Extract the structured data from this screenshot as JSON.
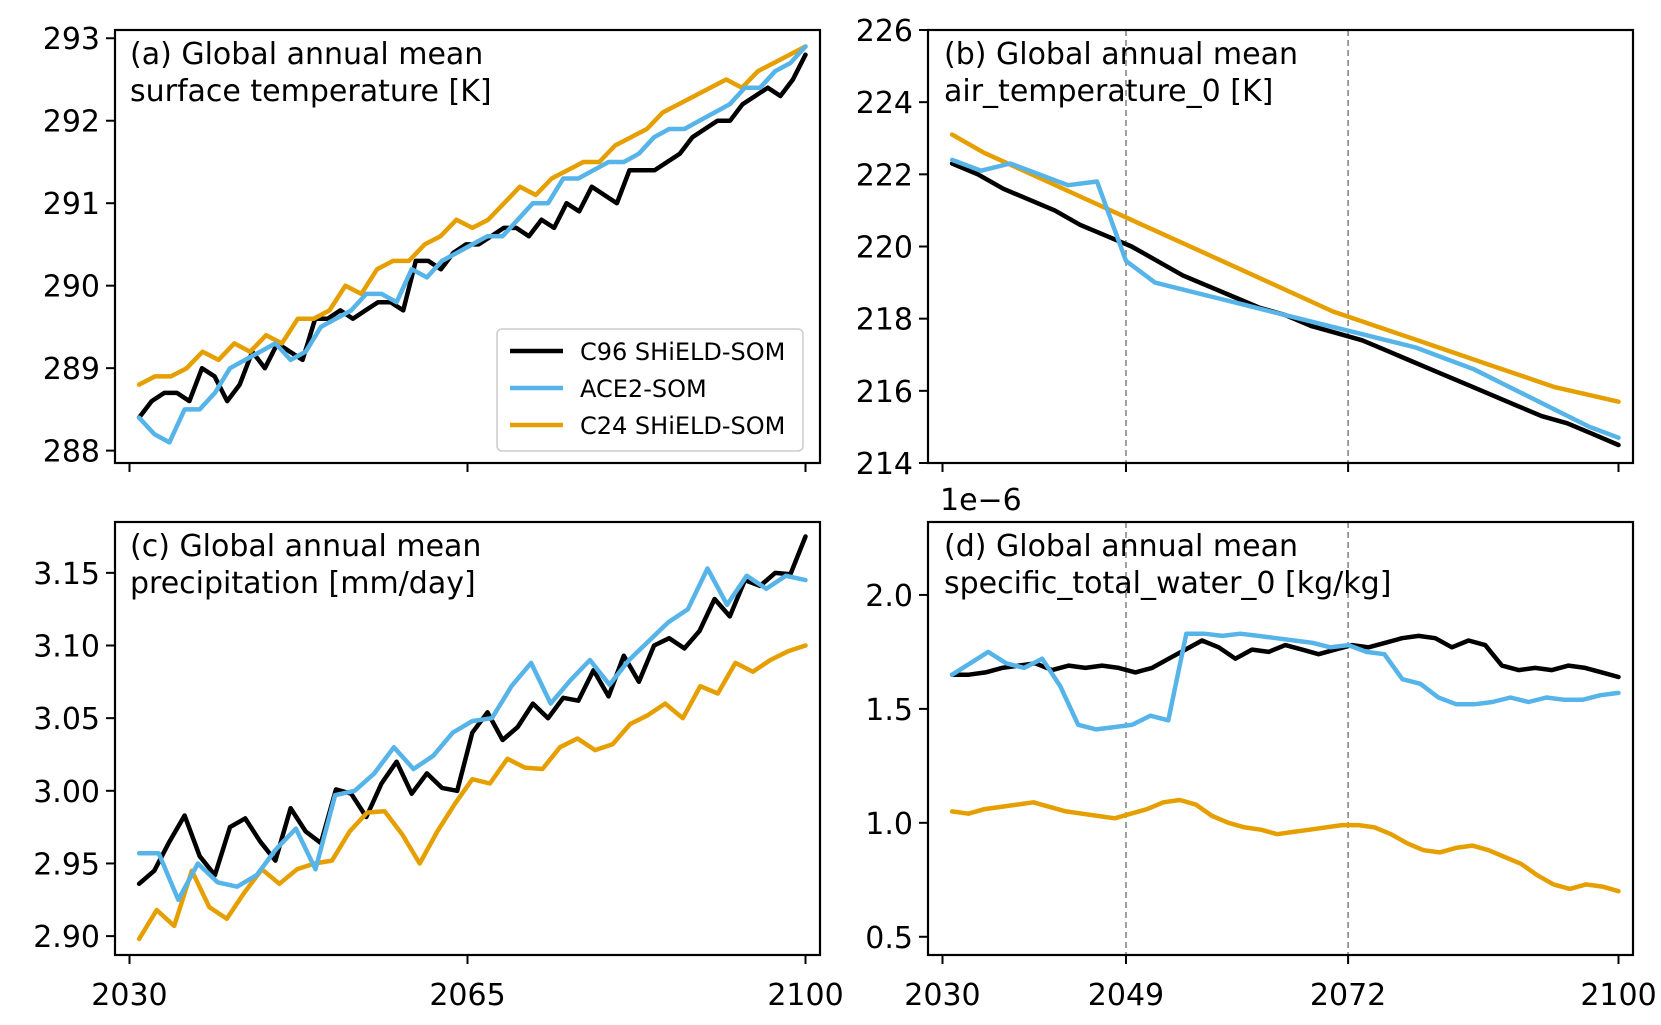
{
  "colors": {
    "c96": "#000000",
    "ace2": "#56b4e9",
    "c24": "#e69f00",
    "event_line": "#888888"
  },
  "legend": {
    "placement": "lower-right of panel (a)",
    "entries": [
      "C96 SHiELD-SOM",
      "ACE2-SOM",
      "C24 SHiELD-SOM"
    ]
  },
  "chart_data": [
    {
      "type": "line",
      "panel": "a",
      "title_lines": [
        "(a) Global annual mean",
        "surface temperature [K]"
      ],
      "xlim": [
        2028.5,
        2101.5
      ],
      "ylim": [
        287.85,
        293.1
      ],
      "xticks": [],
      "yticks": [
        288,
        289,
        290,
        291,
        292,
        293
      ],
      "ytick_labels": [
        "288",
        "289",
        "290",
        "291",
        "292",
        "293"
      ],
      "vlines": [],
      "x_start": 2031,
      "x_end": 2100,
      "series": [
        {
          "name": "C96 SHiELD-SOM",
          "key": "c96",
          "values": [
            288.4,
            288.6,
            288.7,
            288.7,
            288.6,
            289.0,
            288.9,
            288.6,
            288.8,
            289.2,
            289.0,
            289.3,
            289.2,
            289.1,
            289.6,
            289.6,
            289.7,
            289.6,
            289.7,
            289.8,
            289.8,
            289.7,
            290.3,
            290.3,
            290.2,
            290.4,
            290.5,
            290.5,
            290.6,
            290.7,
            290.7,
            290.6,
            290.8,
            290.7,
            291.0,
            290.9,
            291.2,
            291.1,
            291.0,
            291.4,
            291.4,
            291.4,
            291.5,
            291.6,
            291.8,
            291.9,
            292.0,
            292.0,
            292.2,
            292.3,
            292.4,
            292.3,
            292.5,
            292.8
          ]
        },
        {
          "name": "ACE2-SOM",
          "key": "ace2",
          "values": [
            288.4,
            288.2,
            288.1,
            288.5,
            288.5,
            288.7,
            289.0,
            289.1,
            289.2,
            289.3,
            289.1,
            289.2,
            289.5,
            289.6,
            289.7,
            289.9,
            289.9,
            289.8,
            290.2,
            290.1,
            290.3,
            290.4,
            290.5,
            290.6,
            290.6,
            290.8,
            291.0,
            291.0,
            291.3,
            291.3,
            291.4,
            291.5,
            291.5,
            291.6,
            291.8,
            291.9,
            291.9,
            292.0,
            292.1,
            292.2,
            292.4,
            292.4,
            292.6,
            292.7,
            292.9
          ]
        },
        {
          "name": "C24 SHiELD-SOM",
          "key": "c24",
          "values": [
            288.8,
            288.9,
            288.9,
            289.0,
            289.2,
            289.1,
            289.3,
            289.2,
            289.4,
            289.3,
            289.6,
            289.6,
            289.7,
            290.0,
            289.9,
            290.2,
            290.3,
            290.3,
            290.5,
            290.6,
            290.8,
            290.7,
            290.8,
            291.0,
            291.2,
            291.1,
            291.3,
            291.4,
            291.5,
            291.5,
            291.7,
            291.8,
            291.9,
            292.1,
            292.2,
            292.3,
            292.4,
            292.5,
            292.4,
            292.6,
            292.7,
            292.8,
            292.9
          ]
        }
      ]
    },
    {
      "type": "line",
      "panel": "b",
      "title_lines": [
        "(b) Global annual mean",
        "air_temperature_0 [K]"
      ],
      "xlim": [
        2028.5,
        2101.5
      ],
      "ylim": [
        214.0,
        226.0
      ],
      "xticks": [],
      "yticks": [
        214,
        216,
        218,
        220,
        222,
        224,
        226
      ],
      "ytick_labels": [
        "214",
        "216",
        "218",
        "220",
        "222",
        "224",
        "226"
      ],
      "vlines": [
        2049,
        2072
      ],
      "x_start": 2031,
      "x_end": 2100,
      "series": [
        {
          "name": "C96 SHiELD-SOM",
          "key": "c96",
          "values": [
            222.3,
            222.0,
            221.6,
            221.3,
            221.0,
            220.6,
            220.3,
            220.0,
            219.6,
            219.2,
            218.9,
            218.6,
            218.3,
            218.1,
            217.8,
            217.6,
            217.4,
            217.1,
            216.8,
            216.5,
            216.2,
            215.9,
            215.6,
            215.3,
            215.1,
            214.8,
            214.5
          ]
        },
        {
          "name": "ACE2-SOM",
          "key": "ace2",
          "values": [
            222.4,
            222.1,
            222.3,
            222.0,
            221.7,
            221.8,
            219.6,
            219.0,
            218.8,
            218.6,
            218.4,
            218.2,
            218.0,
            217.8,
            217.6,
            217.4,
            217.2,
            216.9,
            216.6,
            216.2,
            215.8,
            215.4,
            215.0,
            214.7
          ]
        },
        {
          "name": "C24 SHiELD-SOM",
          "key": "c24",
          "values": [
            223.1,
            222.6,
            222.2,
            221.8,
            221.4,
            221.0,
            220.6,
            220.2,
            219.8,
            219.4,
            219.0,
            218.6,
            218.2,
            217.9,
            217.6,
            217.3,
            217.0,
            216.7,
            216.4,
            216.1,
            215.9,
            215.7
          ]
        }
      ]
    },
    {
      "type": "line",
      "panel": "c",
      "title_lines": [
        "(c) Global annual mean",
        "precipitation [mm/day]"
      ],
      "xlim": [
        2028.5,
        2101.5
      ],
      "ylim": [
        2.887,
        3.185
      ],
      "xticks": [
        2030,
        2065,
        2100
      ],
      "xtick_labels": [
        "2030",
        "2065",
        "2100"
      ],
      "yticks": [
        2.9,
        2.95,
        3.0,
        3.05,
        3.1,
        3.15
      ],
      "ytick_labels": [
        "2.90",
        "2.95",
        "3.00",
        "3.05",
        "3.10",
        "3.15"
      ],
      "vlines": [],
      "x_start": 2031,
      "x_end": 2100,
      "series": [
        {
          "name": "C96 SHiELD-SOM",
          "key": "c96",
          "values": [
            2.936,
            2.945,
            2.965,
            2.983,
            2.955,
            2.942,
            2.975,
            2.981,
            2.965,
            2.952,
            2.988,
            2.972,
            2.964,
            3.001,
            2.998,
            2.982,
            3.005,
            3.02,
            2.998,
            3.012,
            3.002,
            3.0,
            3.04,
            3.054,
            3.035,
            3.044,
            3.06,
            3.05,
            3.064,
            3.062,
            3.083,
            3.065,
            3.093,
            3.075,
            3.1,
            3.105,
            3.098,
            3.11,
            3.132,
            3.12,
            3.145,
            3.141,
            3.15,
            3.149,
            3.175
          ]
        },
        {
          "name": "ACE2-SOM",
          "key": "ace2",
          "values": [
            2.957,
            2.957,
            2.925,
            2.95,
            2.937,
            2.934,
            2.942,
            2.96,
            2.974,
            2.946,
            2.997,
            3.0,
            3.012,
            3.03,
            3.015,
            3.024,
            3.04,
            3.048,
            3.05,
            3.072,
            3.088,
            3.06,
            3.076,
            3.09,
            3.073,
            3.09,
            3.103,
            3.116,
            3.125,
            3.153,
            3.128,
            3.148,
            3.139,
            3.148,
            3.145
          ]
        },
        {
          "name": "C24 SHiELD-SOM",
          "key": "c24",
          "values": [
            2.898,
            2.918,
            2.907,
            2.945,
            2.92,
            2.912,
            2.93,
            2.946,
            2.936,
            2.946,
            2.95,
            2.952,
            2.972,
            2.985,
            2.986,
            2.97,
            2.95,
            2.972,
            2.991,
            3.008,
            3.005,
            3.022,
            3.016,
            3.015,
            3.03,
            3.036,
            3.028,
            3.032,
            3.046,
            3.052,
            3.06,
            3.05,
            3.072,
            3.067,
            3.088,
            3.082,
            3.09,
            3.096,
            3.1
          ]
        }
      ]
    },
    {
      "type": "line",
      "panel": "d",
      "title_lines": [
        "(d) Global annual mean",
        "specific_total_water_0 [kg/kg]"
      ],
      "offset_text": "1e−6",
      "xlim": [
        2028.5,
        2101.5
      ],
      "ylim": [
        0.42,
        2.32
      ],
      "xticks": [
        2030,
        2049,
        2072,
        2100
      ],
      "xtick_labels": [
        "2030",
        "2049",
        "2072",
        "2100"
      ],
      "yticks": [
        0.5,
        1.0,
        1.5,
        2.0
      ],
      "ytick_labels": [
        "0.5",
        "1.0",
        "1.5",
        "2.0"
      ],
      "vlines": [
        2049,
        2072
      ],
      "x_start": 2031,
      "x_end": 2100,
      "series": [
        {
          "name": "C96 SHiELD-SOM",
          "key": "c96",
          "values": [
            1.65,
            1.65,
            1.66,
            1.68,
            1.69,
            1.7,
            1.67,
            1.69,
            1.68,
            1.69,
            1.68,
            1.66,
            1.68,
            1.72,
            1.76,
            1.8,
            1.77,
            1.72,
            1.76,
            1.75,
            1.78,
            1.76,
            1.74,
            1.76,
            1.78,
            1.77,
            1.79,
            1.81,
            1.82,
            1.81,
            1.77,
            1.8,
            1.78,
            1.69,
            1.67,
            1.68,
            1.67,
            1.69,
            1.68,
            1.66,
            1.64
          ]
        },
        {
          "name": "ACE2-SOM",
          "key": "ace2",
          "values": [
            1.65,
            1.7,
            1.75,
            1.7,
            1.68,
            1.72,
            1.6,
            1.43,
            1.41,
            1.42,
            1.43,
            1.47,
            1.45,
            1.83,
            1.83,
            1.82,
            1.83,
            1.82,
            1.81,
            1.8,
            1.79,
            1.77,
            1.78,
            1.75,
            1.74,
            1.63,
            1.61,
            1.55,
            1.52,
            1.52,
            1.53,
            1.55,
            1.53,
            1.55,
            1.54,
            1.54,
            1.56,
            1.57
          ]
        },
        {
          "name": "C24 SHiELD-SOM",
          "key": "c24",
          "values": [
            1.05,
            1.04,
            1.06,
            1.07,
            1.08,
            1.09,
            1.07,
            1.05,
            1.04,
            1.03,
            1.02,
            1.04,
            1.06,
            1.09,
            1.1,
            1.08,
            1.03,
            1.0,
            0.98,
            0.97,
            0.95,
            0.96,
            0.97,
            0.98,
            0.99,
            0.99,
            0.98,
            0.95,
            0.91,
            0.88,
            0.87,
            0.89,
            0.9,
            0.88,
            0.85,
            0.82,
            0.77,
            0.73,
            0.71,
            0.73,
            0.72,
            0.7
          ]
        }
      ]
    }
  ]
}
